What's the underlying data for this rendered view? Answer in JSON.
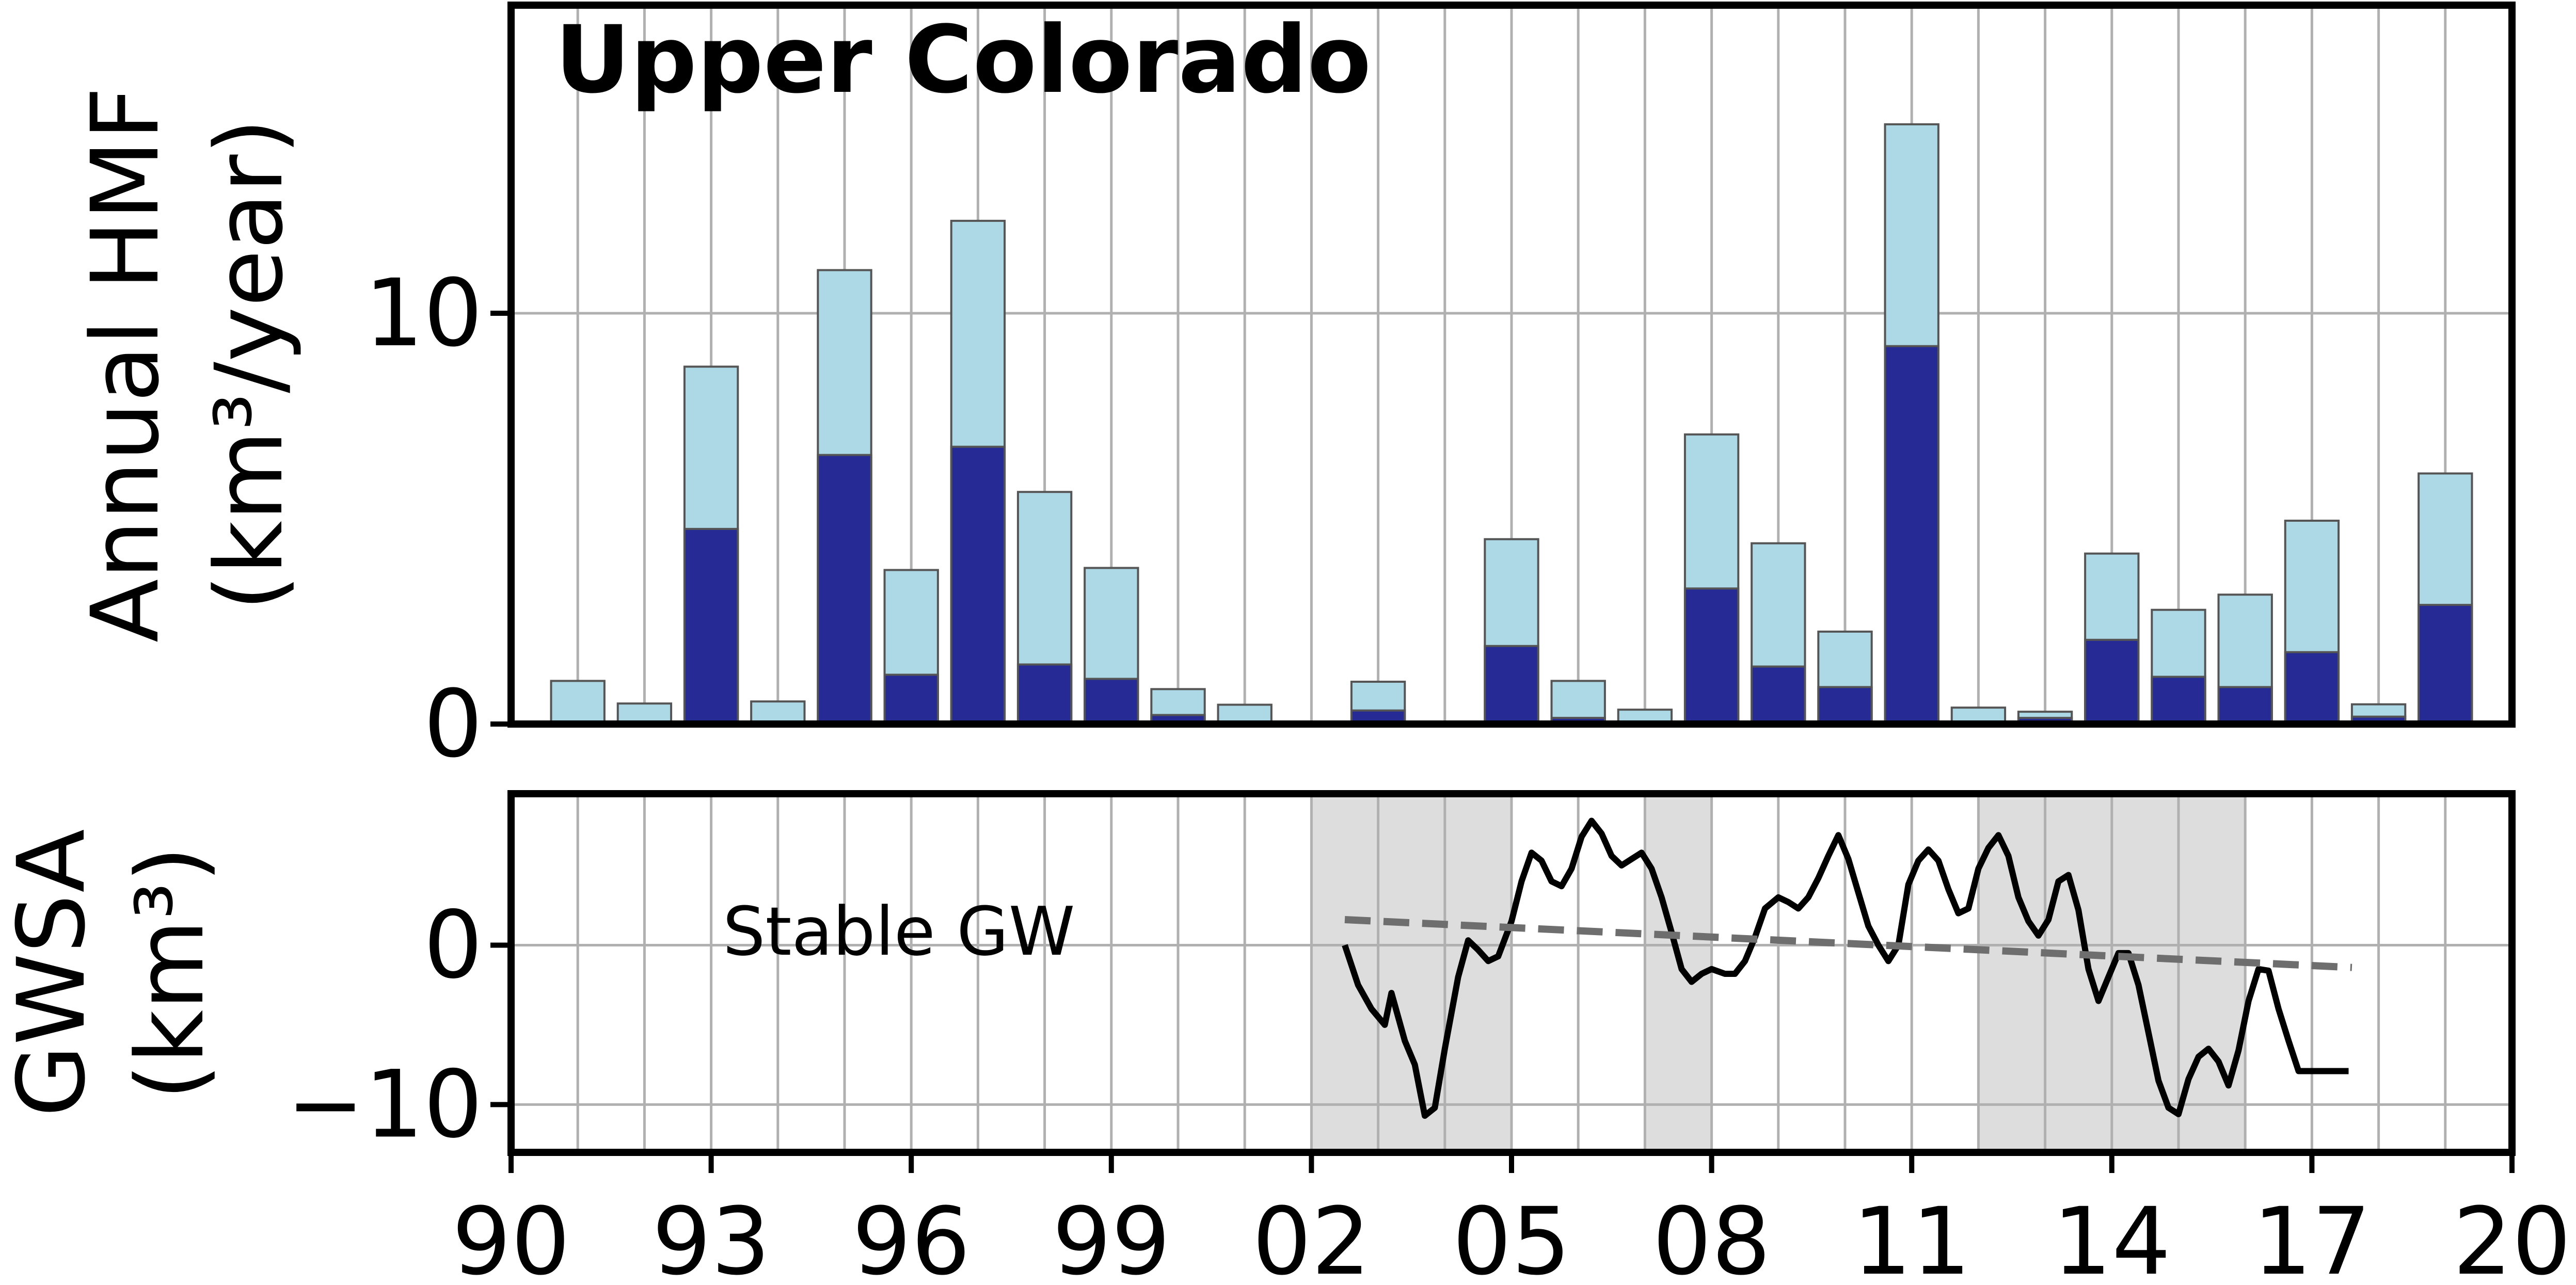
{
  "chart_data": [
    {
      "type": "bar",
      "title": "Upper Colorado",
      "ylabel_line1": "Annual HMF",
      "ylabel_line2": "(km³/year)",
      "ylim": [
        0,
        17.5
      ],
      "yticks": [
        0,
        10
      ],
      "ytick_labels": [
        "0",
        "10"
      ],
      "xlim": [
        1990,
        2020
      ],
      "grid": true,
      "colors": {
        "total": "#add8e6",
        "portion": "#252a94",
        "edge": "#555555"
      },
      "categories": [
        1991,
        1992,
        1993,
        1994,
        1995,
        1996,
        1997,
        1998,
        1999,
        2000,
        2001,
        2002,
        2003,
        2004,
        2005,
        2006,
        2007,
        2008,
        2009,
        2010,
        2011,
        2012,
        2013,
        2014,
        2015,
        2016,
        2017,
        2018,
        2019
      ],
      "series": [
        {
          "values": [
            1.05,
            0.5,
            8.7,
            0.55,
            11.05,
            3.75,
            12.25,
            5.65,
            3.8,
            0.85,
            0.47,
            0.0,
            1.03,
            0.0,
            4.5,
            1.05,
            0.35,
            7.05,
            4.4,
            2.25,
            14.6,
            0.4,
            0.3,
            4.15,
            2.78,
            3.15,
            4.95,
            0.48,
            6.1
          ]
        },
        {
          "values": [
            0.05,
            0.03,
            4.75,
            0.04,
            6.55,
            1.2,
            6.75,
            1.45,
            1.1,
            0.22,
            0.03,
            0.0,
            0.33,
            0.0,
            1.9,
            0.15,
            0.03,
            3.3,
            1.4,
            0.9,
            9.2,
            0.04,
            0.15,
            2.05,
            1.15,
            0.9,
            1.75,
            0.18,
            2.9
          ]
        }
      ]
    },
    {
      "type": "line",
      "ylabel_line1": "GWSA",
      "ylabel_line2": "(km³)",
      "ylim": [
        -13,
        9.5
      ],
      "yticks": [
        -10,
        0
      ],
      "ytick_labels": [
        "−10",
        "0"
      ],
      "xlim": [
        1990,
        2020
      ],
      "xtick_values": [
        1990,
        1993,
        1996,
        1999,
        2002,
        2005,
        2008,
        2011,
        2014,
        2017,
        2020
      ],
      "xtick_labels": [
        "90",
        "93",
        "96",
        "99",
        "02",
        "05",
        "08",
        "11",
        "14",
        "17",
        "20"
      ],
      "grid": true,
      "annotation": "Stable GW",
      "shaded_periods": [
        [
          2002,
          2005
        ],
        [
          2007,
          2008
        ],
        [
          2012,
          2016
        ]
      ],
      "colors": {
        "line": "#000000",
        "trend": "#6e6e6e",
        "shade": "#dddddd"
      },
      "series": [
        {
          "x": [
            2002.5,
            2002.7,
            2002.9,
            2003.1,
            2003.2,
            2003.4,
            2003.55,
            2003.7,
            2003.85,
            2004.0,
            2004.2,
            2004.35,
            2004.5,
            2004.65,
            2004.8,
            2005.0,
            2005.15,
            2005.3,
            2005.45,
            2005.6,
            2005.75,
            2005.9,
            2006.05,
            2006.2,
            2006.35,
            2006.5,
            2006.65,
            2006.8,
            2006.95,
            2007.1,
            2007.25,
            2007.4,
            2007.55,
            2007.7,
            2007.85,
            2008.0,
            2008.2,
            2008.35,
            2008.5,
            2008.65,
            2008.8,
            2009.0,
            2009.15,
            2009.3,
            2009.45,
            2009.6,
            2009.75,
            2009.9,
            2010.05,
            2010.2,
            2010.35,
            2010.5,
            2010.65,
            2010.8,
            2010.95,
            2011.1,
            2011.25,
            2011.4,
            2011.55,
            2011.7,
            2011.85,
            2012.0,
            2012.15,
            2012.3,
            2012.45,
            2012.6,
            2012.75,
            2012.9,
            2013.05,
            2013.2,
            2013.35,
            2013.5,
            2013.65,
            2013.8,
            2013.95,
            2014.1,
            2014.25,
            2014.4,
            2014.55,
            2014.7,
            2014.85,
            2015.0,
            2015.15,
            2015.3,
            2015.45,
            2015.6,
            2015.75,
            2015.9,
            2016.05,
            2016.2,
            2016.35,
            2016.5,
            2016.65,
            2016.8,
            2016.95,
            2017.1,
            2017.25,
            2017.4,
            2017.55
          ],
          "y": [
            0.0,
            -2.5,
            -4.0,
            -5.0,
            -3.0,
            -6.0,
            -7.5,
            -10.7,
            -10.2,
            -6.5,
            -2.0,
            0.3,
            -0.3,
            -1.0,
            -0.7,
            1.5,
            4.0,
            5.8,
            5.3,
            4.0,
            3.7,
            4.8,
            6.8,
            7.8,
            7.0,
            5.6,
            5.0,
            5.4,
            5.8,
            4.8,
            3.0,
            0.8,
            -1.5,
            -2.3,
            -1.8,
            -1.5,
            -1.8,
            -1.8,
            -1.0,
            0.5,
            2.3,
            3.0,
            2.7,
            2.3,
            3.0,
            4.2,
            5.6,
            6.9,
            5.4,
            3.3,
            1.2,
            0.0,
            -1.0,
            0.0,
            3.8,
            5.3,
            6.0,
            5.3,
            3.5,
            2.0,
            2.3,
            4.8,
            6.1,
            6.9,
            5.6,
            3.0,
            1.5,
            0.6,
            1.6,
            4.0,
            4.4,
            2.2,
            -1.5,
            -3.5,
            -2.0,
            -0.5,
            -0.5,
            -2.5,
            -5.5,
            -8.5,
            -10.2,
            -10.6,
            -8.4,
            -7.0,
            -6.5,
            -7.3,
            -8.8,
            -6.6,
            -3.5,
            -1.5,
            -1.6,
            -4.0,
            -6.0,
            -7.9,
            -7.9,
            -7.9,
            -7.9,
            -7.9,
            -7.9
          ]
        },
        {
          "x": [
            2002.5,
            2017.6
          ],
          "y": [
            1.6,
            -1.4
          ]
        }
      ]
    }
  ]
}
